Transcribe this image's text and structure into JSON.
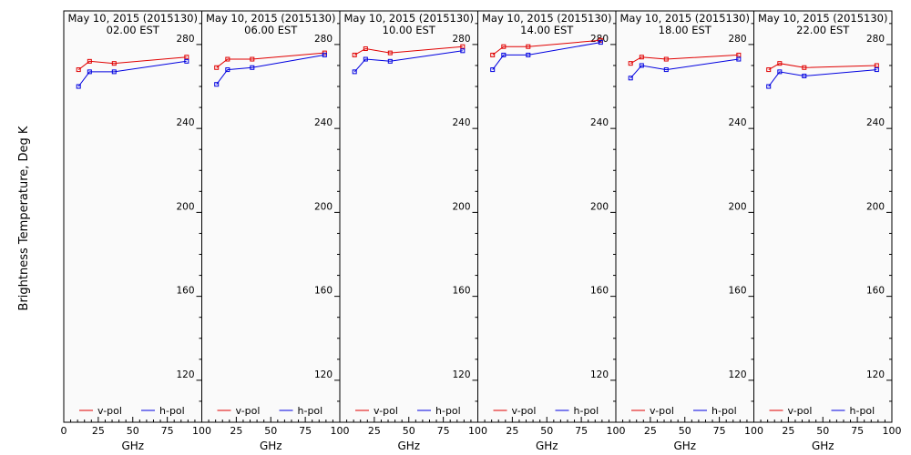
{
  "figure": {
    "ylabel": "Brightness Temperature, Deg K",
    "background": "#fafafa",
    "series_colors": {
      "v-pol": "#e00000",
      "h-pol": "#0000e0"
    }
  },
  "chart_data": [
    {
      "type": "line",
      "title": "May 10, 2015 (2015130)",
      "subtitle": "02.00 EST",
      "xlabel": "GHz",
      "ylabel": "Brightness Temperature, Deg K",
      "xlim": [
        0,
        100
      ],
      "ylim": [
        100,
        296
      ],
      "xticks": [
        0,
        25,
        50,
        75,
        100
      ],
      "yticks": [
        120,
        160,
        200,
        240,
        280
      ],
      "x": [
        10.7,
        18.7,
        36.5,
        89
      ],
      "series": [
        {
          "name": "v-pol",
          "values": [
            268,
            272,
            271,
            274
          ]
        },
        {
          "name": "h-pol",
          "values": [
            260,
            267,
            267,
            272
          ]
        }
      ],
      "legend": "bottom",
      "grid": false
    },
    {
      "type": "line",
      "title": "May 10, 2015 (2015130)",
      "subtitle": "06.00 EST",
      "xlabel": "GHz",
      "xlim": [
        0,
        100
      ],
      "ylim": [
        100,
        296
      ],
      "xticks": [
        25,
        50,
        75,
        100
      ],
      "yticks": [
        120,
        160,
        200,
        240,
        280
      ],
      "x": [
        10.7,
        18.7,
        36.5,
        89
      ],
      "series": [
        {
          "name": "v-pol",
          "values": [
            269,
            273,
            273,
            276
          ]
        },
        {
          "name": "h-pol",
          "values": [
            261,
            268,
            269,
            275
          ]
        }
      ],
      "legend": "bottom",
      "grid": false
    },
    {
      "type": "line",
      "title": "May 10, 2015 (2015130)",
      "subtitle": "10.00 EST",
      "xlabel": "GHz",
      "xlim": [
        0,
        100
      ],
      "ylim": [
        100,
        296
      ],
      "xticks": [
        25,
        50,
        75,
        100
      ],
      "yticks": [
        120,
        160,
        200,
        240,
        280
      ],
      "x": [
        10.7,
        18.7,
        36.5,
        89
      ],
      "series": [
        {
          "name": "v-pol",
          "values": [
            275,
            278,
            276,
            279
          ]
        },
        {
          "name": "h-pol",
          "values": [
            267,
            273,
            272,
            277
          ]
        }
      ],
      "legend": "bottom",
      "grid": false
    },
    {
      "type": "line",
      "title": "May 10, 2015 (2015130)",
      "subtitle": "14.00 EST",
      "xlabel": "GHz",
      "xlim": [
        0,
        100
      ],
      "ylim": [
        100,
        296
      ],
      "xticks": [
        25,
        50,
        75,
        100
      ],
      "yticks": [
        120,
        160,
        200,
        240,
        280
      ],
      "x": [
        10.7,
        18.7,
        36.5,
        89
      ],
      "series": [
        {
          "name": "v-pol",
          "values": [
            275,
            279,
            279,
            282
          ]
        },
        {
          "name": "h-pol",
          "values": [
            268,
            275,
            275,
            281
          ]
        }
      ],
      "legend": "bottom",
      "grid": false
    },
    {
      "type": "line",
      "title": "May 10, 2015 (2015130)",
      "subtitle": "18.00 EST",
      "xlabel": "GHz",
      "xlim": [
        0,
        100
      ],
      "ylim": [
        100,
        296
      ],
      "xticks": [
        25,
        50,
        75,
        100
      ],
      "yticks": [
        120,
        160,
        200,
        240,
        280
      ],
      "x": [
        10.7,
        18.7,
        36.5,
        89
      ],
      "series": [
        {
          "name": "v-pol",
          "values": [
            271,
            274,
            273,
            275
          ]
        },
        {
          "name": "h-pol",
          "values": [
            264,
            270,
            268,
            273
          ]
        }
      ],
      "legend": "bottom",
      "grid": false
    },
    {
      "type": "line",
      "title": "May 10, 2015 (2015130)",
      "subtitle": "22.00 EST",
      "xlabel": "GHz",
      "xlim": [
        0,
        100
      ],
      "ylim": [
        100,
        296
      ],
      "xticks": [
        25,
        50,
        75,
        100
      ],
      "yticks": [
        120,
        160,
        200,
        240,
        280
      ],
      "x": [
        10.7,
        18.7,
        36.5,
        89
      ],
      "series": [
        {
          "name": "v-pol",
          "values": [
            268,
            271,
            269,
            270
          ]
        },
        {
          "name": "h-pol",
          "values": [
            260,
            267,
            265,
            268
          ]
        }
      ],
      "legend": "bottom",
      "grid": false
    }
  ]
}
